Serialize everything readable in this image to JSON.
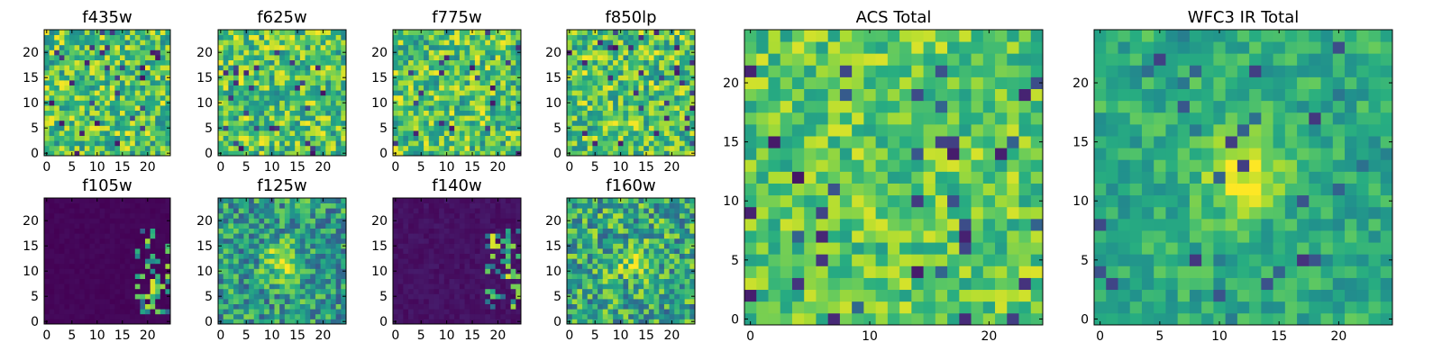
{
  "chart_data": [
    {
      "id": "f435w",
      "type": "heatmap",
      "title": "f435w",
      "grid_size": 25,
      "xlim": [
        -0.5,
        24.5
      ],
      "ylim": [
        -0.5,
        24.5
      ],
      "xticks": [
        0,
        5,
        10,
        15,
        20
      ],
      "yticks": [
        0,
        5,
        10,
        15,
        20
      ],
      "colormap": "viridis",
      "pattern": "noise-high"
    },
    {
      "id": "f625w",
      "type": "heatmap",
      "title": "f625w",
      "grid_size": 25,
      "xlim": [
        -0.5,
        24.5
      ],
      "ylim": [
        -0.5,
        24.5
      ],
      "xticks": [
        0,
        5,
        10,
        15,
        20
      ],
      "yticks": [
        0,
        5,
        10,
        15,
        20
      ],
      "colormap": "viridis",
      "pattern": "noise-high"
    },
    {
      "id": "f775w",
      "type": "heatmap",
      "title": "f775w",
      "grid_size": 25,
      "xlim": [
        -0.5,
        24.5
      ],
      "ylim": [
        -0.5,
        24.5
      ],
      "xticks": [
        0,
        5,
        10,
        15,
        20
      ],
      "yticks": [
        0,
        5,
        10,
        15,
        20
      ],
      "colormap": "viridis",
      "pattern": "noise-high"
    },
    {
      "id": "f850lp",
      "type": "heatmap",
      "title": "f850lp",
      "grid_size": 25,
      "xlim": [
        -0.5,
        24.5
      ],
      "ylim": [
        -0.5,
        24.5
      ],
      "xticks": [
        0,
        5,
        10,
        15,
        20
      ],
      "yticks": [
        0,
        5,
        10,
        15,
        20
      ],
      "colormap": "viridis",
      "pattern": "noise-high"
    },
    {
      "id": "f105w",
      "type": "heatmap",
      "title": "f105w",
      "grid_size": 25,
      "xlim": [
        -0.5,
        24.5
      ],
      "ylim": [
        -0.5,
        24.5
      ],
      "xticks": [
        0,
        5,
        10,
        15,
        20
      ],
      "yticks": [
        0,
        5,
        10,
        15,
        20
      ],
      "colormap": "viridis",
      "pattern": "dark-edge"
    },
    {
      "id": "f125w",
      "type": "heatmap",
      "title": "f125w",
      "grid_size": 25,
      "xlim": [
        -0.5,
        24.5
      ],
      "ylim": [
        -0.5,
        24.5
      ],
      "xticks": [
        0,
        5,
        10,
        15,
        20
      ],
      "yticks": [
        0,
        5,
        10,
        15,
        20
      ],
      "colormap": "viridis",
      "pattern": "source"
    },
    {
      "id": "f140w",
      "type": "heatmap",
      "title": "f140w",
      "grid_size": 25,
      "xlim": [
        -0.5,
        24.5
      ],
      "ylim": [
        -0.5,
        24.5
      ],
      "xticks": [
        0,
        5,
        10,
        15,
        20
      ],
      "yticks": [
        0,
        5,
        10,
        15,
        20
      ],
      "colormap": "viridis",
      "pattern": "dark-edge2"
    },
    {
      "id": "f160w",
      "type": "heatmap",
      "title": "f160w",
      "grid_size": 25,
      "xlim": [
        -0.5,
        24.5
      ],
      "ylim": [
        -0.5,
        24.5
      ],
      "xticks": [
        0,
        5,
        10,
        15,
        20
      ],
      "yticks": [
        0,
        5,
        10,
        15,
        20
      ],
      "colormap": "viridis",
      "pattern": "source-noise"
    },
    {
      "id": "acs_total",
      "type": "heatmap",
      "title": "ACS Total",
      "grid_size": 25,
      "xlim": [
        -0.5,
        24.5
      ],
      "ylim": [
        -0.5,
        24.5
      ],
      "xticks": [
        0,
        10,
        20
      ],
      "yticks": [
        0,
        5,
        10,
        15,
        20
      ],
      "colormap": "viridis",
      "pattern": "acs"
    },
    {
      "id": "wfc3_total",
      "type": "heatmap",
      "title": "WFC3 IR Total",
      "grid_size": 25,
      "xlim": [
        -0.5,
        24.5
      ],
      "ylim": [
        -0.5,
        24.5
      ],
      "xticks": [
        0,
        5,
        10,
        15,
        20
      ],
      "yticks": [
        0,
        5,
        10,
        15,
        20
      ],
      "colormap": "viridis",
      "pattern": "wfc3"
    }
  ]
}
